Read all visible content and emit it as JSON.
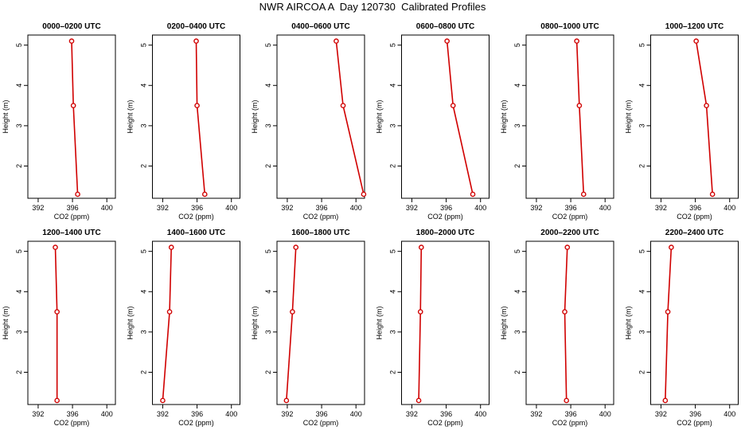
{
  "title": "NWR AIRCOA A  Day 120730  Calibrated Profiles",
  "colors": {
    "series": "#d00000",
    "axis": "#000000"
  },
  "chart_data": [
    {
      "type": "line",
      "title": "0000–0200 UTC",
      "xlabel": "CO2 (ppm)",
      "ylabel": "Height (m)",
      "x_ticks": [
        "392",
        "396",
        "400"
      ],
      "y_ticks": [
        "2",
        "3",
        "4",
        "5"
      ],
      "xlim": [
        390.8,
        401.0
      ],
      "ylim": [
        1.2,
        5.25
      ],
      "points": [
        {
          "x": 396.6,
          "y": 1.3
        },
        {
          "x": 396.1,
          "y": 3.5
        },
        {
          "x": 395.9,
          "y": 5.1
        }
      ]
    },
    {
      "type": "line",
      "title": "0200–0400 UTC",
      "xlabel": "CO2 (ppm)",
      "ylabel": "Height (m)",
      "x_ticks": [
        "392",
        "396",
        "400"
      ],
      "y_ticks": [
        "2",
        "3",
        "4",
        "5"
      ],
      "xlim": [
        390.8,
        401.0
      ],
      "ylim": [
        1.2,
        5.25
      ],
      "points": [
        {
          "x": 396.9,
          "y": 1.3
        },
        {
          "x": 396.0,
          "y": 3.5
        },
        {
          "x": 395.9,
          "y": 5.1
        }
      ]
    },
    {
      "type": "line",
      "title": "0400–0600 UTC",
      "xlabel": "CO2 (ppm)",
      "ylabel": "Height (m)",
      "x_ticks": [
        "392",
        "396",
        "400"
      ],
      "y_ticks": [
        "2",
        "3",
        "4",
        "5"
      ],
      "xlim": [
        390.8,
        401.0
      ],
      "ylim": [
        1.2,
        5.25
      ],
      "points": [
        {
          "x": 400.9,
          "y": 1.3
        },
        {
          "x": 398.5,
          "y": 3.5
        },
        {
          "x": 397.7,
          "y": 5.1
        }
      ]
    },
    {
      "type": "line",
      "title": "0600–0800 UTC",
      "xlabel": "CO2 (ppm)",
      "ylabel": "Height (m)",
      "x_ticks": [
        "392",
        "396",
        "400"
      ],
      "y_ticks": [
        "2",
        "3",
        "4",
        "5"
      ],
      "xlim": [
        390.8,
        401.0
      ],
      "ylim": [
        1.2,
        5.25
      ],
      "points": [
        {
          "x": 399.1,
          "y": 1.3
        },
        {
          "x": 396.8,
          "y": 3.5
        },
        {
          "x": 396.1,
          "y": 5.1
        }
      ]
    },
    {
      "type": "line",
      "title": "0800–1000 UTC",
      "xlabel": "CO2 (ppm)",
      "ylabel": "Height (m)",
      "x_ticks": [
        "392",
        "396",
        "400"
      ],
      "y_ticks": [
        "2",
        "3",
        "4",
        "5"
      ],
      "xlim": [
        390.8,
        401.0
      ],
      "ylim": [
        1.2,
        5.25
      ],
      "points": [
        {
          "x": 397.5,
          "y": 1.3
        },
        {
          "x": 397.0,
          "y": 3.5
        },
        {
          "x": 396.7,
          "y": 5.1
        }
      ]
    },
    {
      "type": "line",
      "title": "1000–1200 UTC",
      "xlabel": "CO2 (ppm)",
      "ylabel": "Height (m)",
      "x_ticks": [
        "392",
        "396",
        "400"
      ],
      "y_ticks": [
        "2",
        "3",
        "4",
        "5"
      ],
      "xlim": [
        390.8,
        401.0
      ],
      "ylim": [
        1.2,
        5.25
      ],
      "points": [
        {
          "x": 398.0,
          "y": 1.3
        },
        {
          "x": 397.3,
          "y": 3.5
        },
        {
          "x": 396.1,
          "y": 5.1
        }
      ]
    },
    {
      "type": "line",
      "title": "1200–1400 UTC",
      "xlabel": "CO2 (ppm)",
      "ylabel": "Height (m)",
      "x_ticks": [
        "392",
        "396",
        "400"
      ],
      "y_ticks": [
        "2",
        "3",
        "4",
        "5"
      ],
      "xlim": [
        390.8,
        401.0
      ],
      "ylim": [
        1.2,
        5.25
      ],
      "points": [
        {
          "x": 394.2,
          "y": 1.3
        },
        {
          "x": 394.2,
          "y": 3.5
        },
        {
          "x": 394.0,
          "y": 5.1
        }
      ]
    },
    {
      "type": "line",
      "title": "1400–1600 UTC",
      "xlabel": "CO2 (ppm)",
      "ylabel": "Height (m)",
      "x_ticks": [
        "392",
        "396",
        "400"
      ],
      "y_ticks": [
        "2",
        "3",
        "4",
        "5"
      ],
      "xlim": [
        390.8,
        401.0
      ],
      "ylim": [
        1.2,
        5.25
      ],
      "points": [
        {
          "x": 392.0,
          "y": 1.3
        },
        {
          "x": 392.8,
          "y": 3.5
        },
        {
          "x": 393.0,
          "y": 5.1
        }
      ]
    },
    {
      "type": "line",
      "title": "1600–1800 UTC",
      "xlabel": "CO2 (ppm)",
      "ylabel": "Height (m)",
      "x_ticks": [
        "392",
        "396",
        "400"
      ],
      "y_ticks": [
        "2",
        "3",
        "4",
        "5"
      ],
      "xlim": [
        390.8,
        401.0
      ],
      "ylim": [
        1.2,
        5.25
      ],
      "points": [
        {
          "x": 391.9,
          "y": 1.3
        },
        {
          "x": 392.6,
          "y": 3.5
        },
        {
          "x": 393.0,
          "y": 5.1
        }
      ]
    },
    {
      "type": "line",
      "title": "1800–2000 UTC",
      "xlabel": "CO2 (ppm)",
      "ylabel": "Height (m)",
      "x_ticks": [
        "392",
        "396",
        "400"
      ],
      "y_ticks": [
        "2",
        "3",
        "4",
        "5"
      ],
      "xlim": [
        390.8,
        401.0
      ],
      "ylim": [
        1.2,
        5.25
      ],
      "points": [
        {
          "x": 392.8,
          "y": 1.3
        },
        {
          "x": 393.0,
          "y": 3.5
        },
        {
          "x": 393.1,
          "y": 5.1
        }
      ]
    },
    {
      "type": "line",
      "title": "2000–2200 UTC",
      "xlabel": "CO2 (ppm)",
      "ylabel": "Height (m)",
      "x_ticks": [
        "392",
        "396",
        "400"
      ],
      "y_ticks": [
        "2",
        "3",
        "4",
        "5"
      ],
      "xlim": [
        390.8,
        401.0
      ],
      "ylim": [
        1.2,
        5.25
      ],
      "points": [
        {
          "x": 395.5,
          "y": 1.3
        },
        {
          "x": 395.3,
          "y": 3.5
        },
        {
          "x": 395.6,
          "y": 5.1
        }
      ]
    },
    {
      "type": "line",
      "title": "2200–2400 UTC",
      "xlabel": "CO2 (ppm)",
      "ylabel": "Height (m)",
      "x_ticks": [
        "392",
        "396",
        "400"
      ],
      "y_ticks": [
        "2",
        "3",
        "4",
        "5"
      ],
      "xlim": [
        390.8,
        401.0
      ],
      "ylim": [
        1.2,
        5.25
      ],
      "points": [
        {
          "x": 392.5,
          "y": 1.3
        },
        {
          "x": 392.8,
          "y": 3.5
        },
        {
          "x": 393.2,
          "y": 5.1
        }
      ]
    }
  ]
}
